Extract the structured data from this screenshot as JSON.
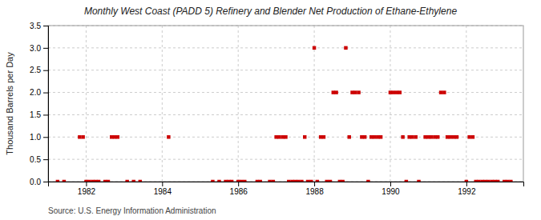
{
  "chart_data": {
    "type": "scatter",
    "title": "Monthly West Coast (PADD 5) Refinery and Blender Net Production of Ethane-Ethylene",
    "ylabel": "Thousand Barrels per Day",
    "source": "Source: U.S. Energy Information Administration",
    "color": "#cc0000",
    "marker": "square",
    "grid": true,
    "xlim": [
      1981.0,
      1993.5
    ],
    "xticks": [
      1982,
      1984,
      1986,
      1988,
      1990,
      1992
    ],
    "ylim": [
      0.0,
      3.5
    ],
    "yticks": [
      {
        "value": 0.0,
        "label": "0.0"
      },
      0.5,
      {
        "value": 1.0,
        "label": "1.0"
      },
      1.5,
      {
        "value": 2.0,
        "label": "2.0"
      },
      2.5,
      {
        "value": 3.0,
        "label": "3.0"
      },
      3.5
    ],
    "x": [
      1981.25,
      1981.42,
      1981.83,
      1981.92,
      1982.0,
      1982.08,
      1982.17,
      1982.25,
      1982.33,
      1982.5,
      1982.58,
      1982.67,
      1982.75,
      1982.83,
      1983.08,
      1983.25,
      1983.42,
      1984.17,
      1985.33,
      1985.5,
      1985.67,
      1985.75,
      1985.83,
      1986.0,
      1986.08,
      1986.17,
      1986.5,
      1986.58,
      1986.83,
      1986.92,
      1987.0,
      1987.08,
      1987.17,
      1987.25,
      1987.33,
      1987.42,
      1987.5,
      1987.58,
      1987.67,
      1987.75,
      1987.83,
      1987.92,
      1988.0,
      1988.08,
      1988.17,
      1988.25,
      1988.33,
      1988.42,
      1988.5,
      1988.58,
      1988.67,
      1988.75,
      1988.83,
      1988.92,
      1989.0,
      1989.08,
      1989.17,
      1989.25,
      1989.33,
      1989.42,
      1989.5,
      1989.58,
      1989.67,
      1989.75,
      1990.0,
      1990.08,
      1990.17,
      1990.25,
      1990.33,
      1990.42,
      1990.5,
      1990.58,
      1990.67,
      1990.75,
      1990.92,
      1991.0,
      1991.08,
      1991.17,
      1991.25,
      1991.33,
      1991.42,
      1991.5,
      1991.58,
      1991.67,
      1991.75,
      1992.0,
      1992.08,
      1992.17,
      1992.25,
      1992.33,
      1992.42,
      1992.5,
      1992.58,
      1992.67,
      1992.75,
      1992.83,
      1993.0,
      1993.08,
      1993.17
    ],
    "values": [
      0.0,
      0.0,
      1.0,
      1.0,
      0.0,
      0.0,
      0.0,
      0.0,
      0.0,
      0.0,
      0.0,
      1.0,
      1.0,
      1.0,
      0.0,
      0.0,
      0.0,
      1.0,
      0.0,
      0.0,
      0.0,
      0.0,
      0.0,
      0.0,
      0.0,
      0.0,
      0.0,
      0.0,
      0.0,
      0.0,
      1.0,
      1.0,
      1.0,
      1.0,
      0.0,
      0.0,
      0.0,
      0.0,
      0.0,
      1.0,
      0.0,
      0.0,
      3.0,
      0.0,
      1.0,
      1.0,
      0.0,
      0.0,
      2.0,
      2.0,
      0.0,
      0.0,
      3.0,
      1.0,
      2.0,
      2.0,
      2.0,
      1.0,
      1.0,
      0.0,
      1.0,
      1.0,
      1.0,
      1.0,
      2.0,
      2.0,
      2.0,
      2.0,
      1.0,
      0.0,
      1.0,
      1.0,
      1.0,
      0.0,
      1.0,
      1.0,
      1.0,
      1.0,
      1.0,
      2.0,
      2.0,
      1.0,
      1.0,
      1.0,
      1.0,
      0.0,
      1.0,
      1.0,
      0.0,
      0.0,
      0.0,
      0.0,
      0.0,
      0.0,
      0.0,
      0.0,
      0.0,
      0.0,
      0.0
    ]
  }
}
